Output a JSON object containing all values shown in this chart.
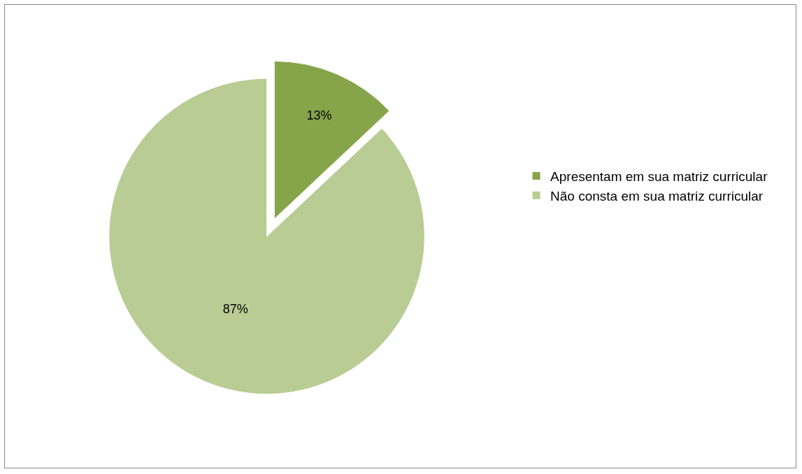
{
  "chart_data": {
    "type": "pie",
    "categories": [
      "Apresentam em sua matriz curricular",
      "Não consta em sua matriz curricular"
    ],
    "values": [
      13,
      87
    ],
    "colors": [
      "#86a44a",
      "#b8cc94"
    ],
    "value_labels": [
      "13%",
      "87%"
    ],
    "legend": "right"
  }
}
